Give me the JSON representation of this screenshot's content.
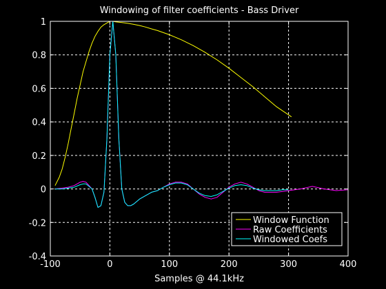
{
  "chart_data": {
    "type": "line",
    "title": "Windowing of filter coefficients - Bass Driver",
    "xlabel": "Samples @ 44.1kHz",
    "ylabel": "",
    "xlim": [
      -100,
      400
    ],
    "ylim": [
      -0.4,
      1
    ],
    "xticks": [
      -100,
      0,
      100,
      200,
      300,
      400
    ],
    "yticks": [
      -0.4,
      -0.2,
      0,
      0.2,
      0.4,
      0.6,
      0.8,
      1
    ],
    "xtick_labels": [
      "-100",
      "0",
      "100",
      "200",
      "300",
      "400"
    ],
    "ytick_labels": [
      "-0.4",
      "-0.2",
      "0",
      "0.2",
      "0.4",
      "0.6",
      "0.8",
      "1"
    ],
    "grid": true,
    "legend_position": "bottom-right",
    "series": [
      {
        "name": "Window Function",
        "color": "#ffff00",
        "x": [
          -92,
          -85,
          -80,
          -75,
          -70,
          -65,
          -60,
          -55,
          -50,
          -45,
          -40,
          -35,
          -30,
          -25,
          -20,
          -15,
          -10,
          -5,
          0,
          5,
          10,
          20,
          30,
          40,
          50,
          60,
          70,
          80,
          100,
          120,
          140,
          160,
          180,
          200,
          220,
          240,
          260,
          280,
          305
        ],
        "y": [
          0.02,
          0.07,
          0.12,
          0.19,
          0.27,
          0.36,
          0.45,
          0.54,
          0.62,
          0.7,
          0.76,
          0.82,
          0.87,
          0.91,
          0.94,
          0.965,
          0.98,
          0.99,
          1.0,
          1.0,
          0.997,
          0.993,
          0.988,
          0.982,
          0.975,
          0.966,
          0.955,
          0.945,
          0.92,
          0.89,
          0.855,
          0.815,
          0.77,
          0.72,
          0.665,
          0.61,
          0.55,
          0.49,
          0.43
        ]
      },
      {
        "name": "Raw Coefficients",
        "color": "#ff00ff",
        "x": [
          -92,
          -80,
          -70,
          -60,
          -50,
          -45,
          -40,
          -35,
          -30,
          -25,
          -20,
          -15,
          -10,
          -5,
          0,
          5,
          10,
          15,
          20,
          25,
          30,
          35,
          40,
          50,
          60,
          70,
          80,
          90,
          100,
          110,
          120,
          130,
          140,
          150,
          160,
          170,
          180,
          190,
          200,
          210,
          220,
          230,
          240,
          250,
          260,
          270,
          280,
          290,
          300,
          320,
          340,
          360,
          380,
          400
        ],
        "y": [
          0.0,
          0.005,
          0.01,
          0.02,
          0.04,
          0.045,
          0.04,
          0.02,
          0.0,
          -0.05,
          -0.11,
          -0.1,
          -0.02,
          0.3,
          0.8,
          1.0,
          0.8,
          0.3,
          0.0,
          -0.08,
          -0.1,
          -0.1,
          -0.09,
          -0.06,
          -0.04,
          -0.02,
          -0.01,
          0.01,
          0.03,
          0.04,
          0.04,
          0.03,
          0.0,
          -0.03,
          -0.05,
          -0.06,
          -0.05,
          -0.02,
          0.01,
          0.03,
          0.04,
          0.03,
          0.01,
          -0.01,
          -0.02,
          -0.02,
          -0.02,
          -0.015,
          -0.01,
          0.0,
          0.015,
          0.0,
          -0.01,
          -0.005
        ]
      },
      {
        "name": "Windowed Coefs",
        "color": "#00ffff",
        "x": [
          -92,
          -80,
          -70,
          -60,
          -50,
          -45,
          -40,
          -35,
          -30,
          -25,
          -20,
          -15,
          -10,
          -5,
          0,
          5,
          10,
          15,
          20,
          25,
          30,
          35,
          40,
          50,
          60,
          70,
          80,
          90,
          100,
          110,
          120,
          130,
          140,
          150,
          160,
          170,
          180,
          190,
          200,
          210,
          220,
          230,
          240,
          250,
          260,
          270,
          280,
          290,
          300
        ],
        "y": [
          0.0,
          0.0,
          0.005,
          0.01,
          0.025,
          0.03,
          0.03,
          0.015,
          0.0,
          -0.05,
          -0.11,
          -0.1,
          -0.02,
          0.3,
          0.8,
          1.0,
          0.8,
          0.3,
          0.0,
          -0.08,
          -0.1,
          -0.1,
          -0.09,
          -0.06,
          -0.04,
          -0.02,
          -0.01,
          0.01,
          0.025,
          0.035,
          0.035,
          0.025,
          0.0,
          -0.025,
          -0.04,
          -0.045,
          -0.035,
          -0.015,
          0.005,
          0.02,
          0.025,
          0.02,
          0.005,
          -0.005,
          -0.01,
          -0.01,
          -0.01,
          -0.005,
          -0.005
        ]
      }
    ]
  }
}
